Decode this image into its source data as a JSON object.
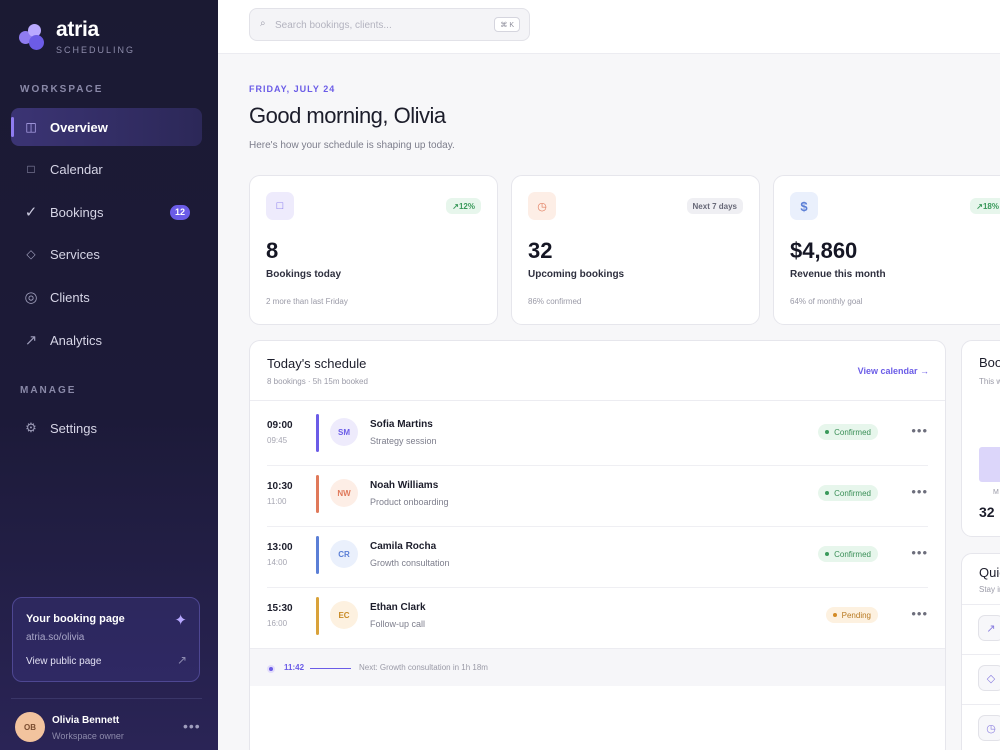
{
  "brand": {
    "name": "atria",
    "subtitle": "SCHEDULING"
  },
  "sidebar": {
    "workspace_label": "WORKSPACE",
    "manage_label": "MANAGE",
    "items": [
      {
        "label": "Overview",
        "icon": "layout-icon",
        "active": true
      },
      {
        "label": "Calendar",
        "icon": "calendar-icon"
      },
      {
        "label": "Bookings",
        "icon": "check-icon",
        "badge": "12"
      },
      {
        "label": "Services",
        "icon": "diamond-icon"
      },
      {
        "label": "Clients",
        "icon": "clients-icon"
      },
      {
        "label": "Analytics",
        "icon": "trend-icon"
      }
    ],
    "manage_items": [
      {
        "label": "Settings",
        "icon": "gear-icon"
      }
    ],
    "booking_page": {
      "title": "Your booking page",
      "url": "atria.so/olivia",
      "link": "View public page"
    },
    "user": {
      "initials": "OB",
      "name": "Olivia Bennett",
      "role": "Workspace owner"
    }
  },
  "search": {
    "placeholder": "Search bookings, clients...",
    "shortcut": "⌘ K"
  },
  "header": {
    "date": "FRIDAY, JULY 24",
    "greeting": "Good morning, Olivia",
    "subtitle": "Here's how your schedule is shaping up today."
  },
  "stats": [
    {
      "value": "8",
      "label": "Bookings today",
      "note": "2 more than last Friday",
      "pill": "↗12%",
      "icon": "calendar-icon",
      "pill_style": "green"
    },
    {
      "value": "32",
      "label": "Upcoming bookings",
      "note": "86% confirmed",
      "pill": "Next 7 days",
      "icon": "clock-icon",
      "pill_style": "gray"
    },
    {
      "value": "$4,860",
      "label": "Revenue this month",
      "note": "64% of monthly goal",
      "pill": "↗18%",
      "icon": "dollar-icon",
      "pill_style": "green"
    }
  ],
  "schedule": {
    "title": "Today's schedule",
    "subtitle": "8 bookings · 5h 15m booked",
    "link": "View calendar",
    "rows": [
      {
        "start": "09:00",
        "end": "09:45",
        "initials": "SM",
        "name": "Sofia Martins",
        "service": "Strategy session",
        "status": "Confirmed"
      },
      {
        "start": "10:30",
        "end": "11:00",
        "initials": "NW",
        "name": "Noah Williams",
        "service": "Product onboarding",
        "status": "Confirmed"
      },
      {
        "start": "13:00",
        "end": "14:00",
        "initials": "CR",
        "name": "Camila Rocha",
        "service": "Growth consultation",
        "status": "Confirmed"
      },
      {
        "start": "15:30",
        "end": "16:00",
        "initials": "EC",
        "name": "Ethan Clark",
        "service": "Follow-up call",
        "status": "Pending"
      }
    ],
    "now": {
      "time": "11:42",
      "text": "Next: Growth consultation in 1h 18m"
    }
  },
  "right_panels": {
    "bookings": {
      "title": "Boo",
      "subtitle": "This w",
      "day": "M",
      "value": "32"
    },
    "quick": {
      "title": "Quic",
      "subtitle": "Stay in"
    }
  },
  "colors": {
    "accent": "#6b5ce7",
    "sidebar_bg": "#1b1a33",
    "confirmed": "#3a9a5b",
    "pending": "#d38b26",
    "bar_colors": [
      "#6b5ce7",
      "#e0795a",
      "#5b7fd6",
      "#d9a23a"
    ]
  }
}
